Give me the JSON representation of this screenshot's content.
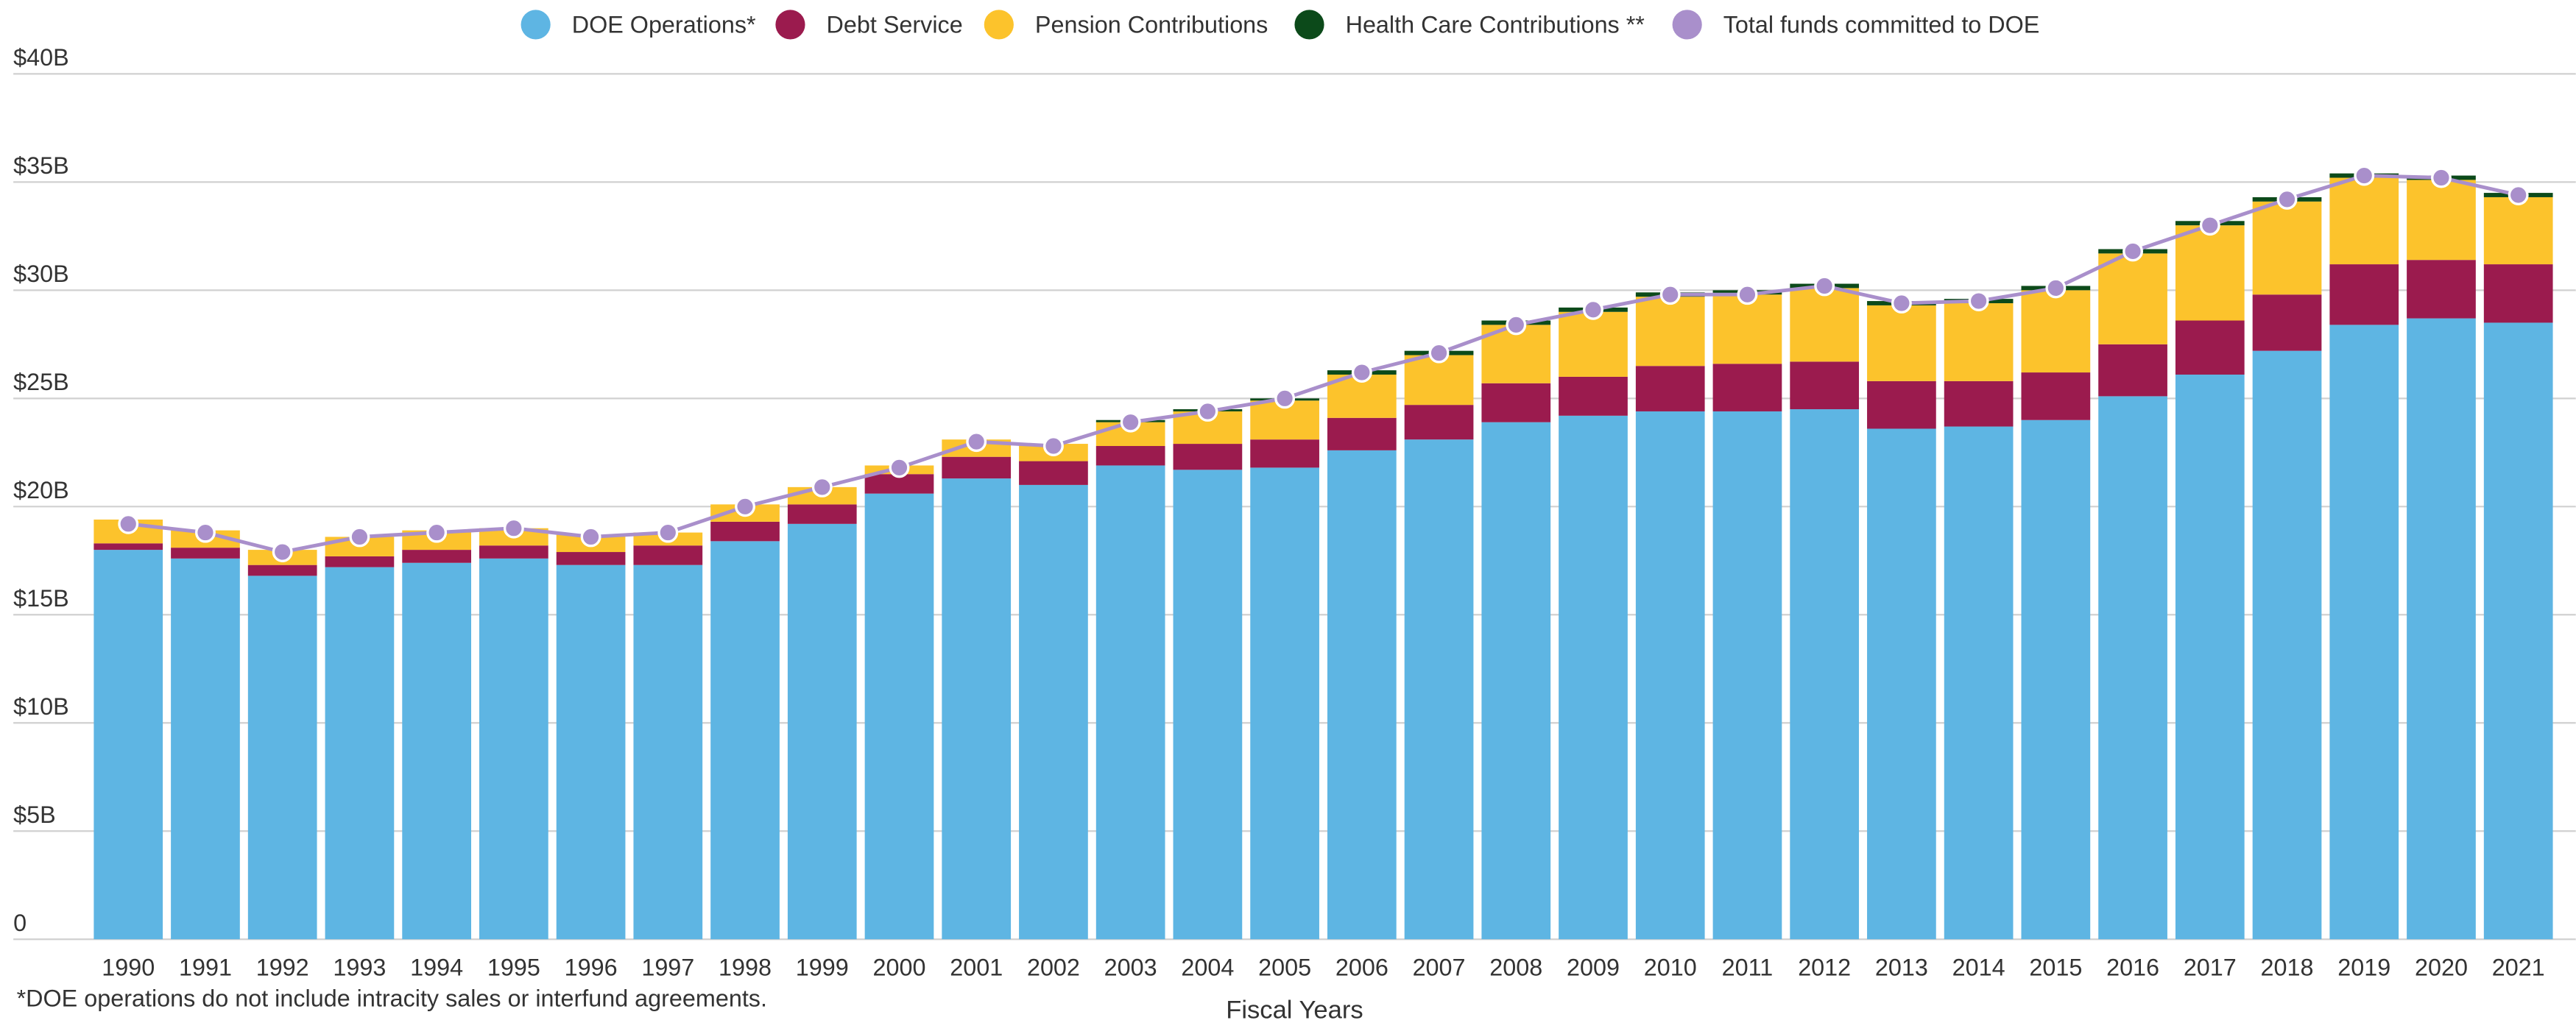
{
  "chart_data": {
    "type": "bar",
    "stacked": true,
    "x_label": "Fiscal Years",
    "footnote": "*DOE operations do not include intracity sales or interfund agreements.",
    "categories": [
      "1990",
      "1991",
      "1992",
      "1993",
      "1994",
      "1995",
      "1996",
      "1997",
      "1998",
      "1999",
      "2000",
      "2001",
      "2002",
      "2003",
      "2004",
      "2005",
      "2006",
      "2007",
      "2008",
      "2009",
      "2010",
      "2011",
      "2012",
      "2013",
      "2014",
      "2015",
      "2016",
      "2017",
      "2018",
      "2019",
      "2020",
      "2021"
    ],
    "series": [
      {
        "name": "DOE Operations*",
        "color": "#5eb5e3",
        "values": [
          18.0,
          17.6,
          16.8,
          17.2,
          17.4,
          17.6,
          17.3,
          17.3,
          18.4,
          19.2,
          20.6,
          21.3,
          21.0,
          21.9,
          21.7,
          21.8,
          22.6,
          23.1,
          23.9,
          24.2,
          24.4,
          24.4,
          24.5,
          23.6,
          23.7,
          24.0,
          25.1,
          26.1,
          27.2,
          28.4,
          28.7,
          28.5
        ]
      },
      {
        "name": "Debt Service",
        "color": "#9b1b4e",
        "values": [
          0.3,
          0.5,
          0.5,
          0.5,
          0.6,
          0.6,
          0.6,
          0.9,
          0.9,
          0.9,
          0.9,
          1.0,
          1.1,
          0.9,
          1.2,
          1.3,
          1.5,
          1.6,
          1.8,
          1.8,
          2.1,
          2.2,
          2.2,
          2.2,
          2.1,
          2.2,
          2.4,
          2.5,
          2.6,
          2.8,
          2.7,
          2.7
        ]
      },
      {
        "name": "Pension Contributions",
        "color": "#fcc32c",
        "values": [
          1.1,
          0.8,
          0.7,
          0.9,
          0.9,
          0.8,
          0.8,
          0.6,
          0.8,
          0.8,
          0.4,
          0.8,
          0.8,
          1.1,
          1.5,
          1.8,
          2.0,
          2.3,
          2.7,
          3.0,
          3.2,
          3.2,
          3.4,
          3.5,
          3.6,
          3.8,
          4.2,
          4.4,
          4.3,
          4.0,
          3.7,
          3.1
        ]
      },
      {
        "name": "Health Care Contributions **",
        "color": "#0c4a1a",
        "values": [
          0,
          0,
          0,
          0,
          0,
          0,
          0,
          0,
          0,
          0,
          0,
          0,
          0,
          0.1,
          0.1,
          0.1,
          0.2,
          0.2,
          0.2,
          0.2,
          0.2,
          0.2,
          0.2,
          0.2,
          0.2,
          0.2,
          0.2,
          0.2,
          0.2,
          0.2,
          0.2,
          0.2
        ]
      },
      {
        "name": "Total funds committed to DOE",
        "type": "line",
        "color": "#a98fcb",
        "values": [
          19.2,
          18.8,
          17.9,
          18.6,
          18.8,
          19.0,
          18.6,
          18.8,
          20.0,
          20.9,
          21.8,
          23.0,
          22.8,
          23.9,
          24.4,
          25.0,
          26.2,
          27.1,
          28.4,
          29.1,
          29.8,
          29.8,
          30.2,
          29.4,
          29.5,
          30.1,
          31.8,
          33.0,
          34.2,
          35.3,
          35.2,
          34.4
        ]
      }
    ],
    "ylim": [
      0,
      40
    ],
    "yticks": [
      0,
      {
        "value": 5,
        "label": "$5B"
      },
      {
        "value": 10,
        "label": "$10B"
      },
      {
        "value": 15,
        "label": "$15B"
      },
      {
        "value": 20,
        "label": "$20B"
      },
      {
        "value": 25,
        "label": "$25B"
      },
      {
        "value": 30,
        "label": "$30B"
      },
      {
        "value": 35,
        "label": "$35B"
      },
      {
        "value": 40,
        "label": "$40B"
      }
    ],
    "grid": true,
    "legend": "top"
  }
}
